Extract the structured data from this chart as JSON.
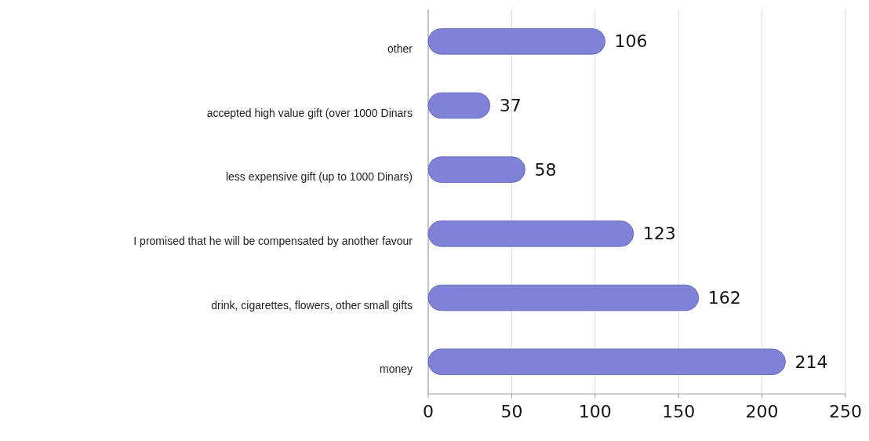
{
  "chart_data": {
    "type": "bar",
    "orientation": "horizontal",
    "categories": [
      "other",
      "accepted high value gift (over 1000 Dinars",
      "less expensive gift (up to 1000 Dinars)",
      "I promised that he will be compensated by another favour",
      "drink, cigarettes, flowers, other small gifts",
      "money"
    ],
    "values": [
      106,
      37,
      58,
      123,
      162,
      214
    ],
    "color": "#7f82d6",
    "xlim": [
      0,
      250
    ],
    "xticks": [
      0,
      50,
      100,
      150,
      200,
      250
    ],
    "grid": "x",
    "data_labels": true
  }
}
